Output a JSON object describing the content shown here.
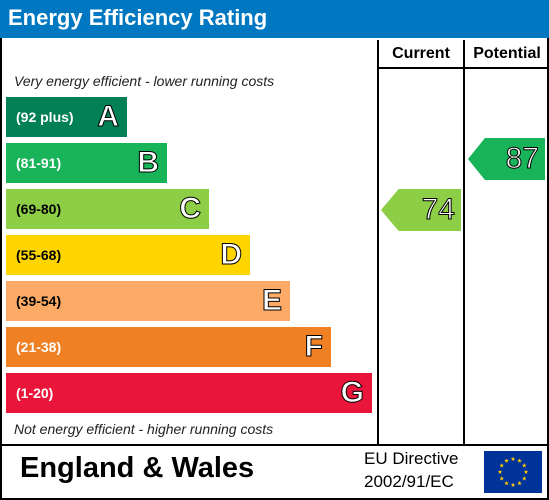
{
  "title": "Energy Efficiency Rating",
  "columns": {
    "current": "Current",
    "potential": "Potential"
  },
  "notes": {
    "top": "Very energy efficient - lower running costs",
    "bottom": "Not energy efficient - higher running costs"
  },
  "bands": [
    {
      "range": "(92 plus)",
      "letter": "A",
      "color": "#008054"
    },
    {
      "range": "(81-91)",
      "letter": "B",
      "color": "#19b459"
    },
    {
      "range": "(69-80)",
      "letter": "C",
      "color": "#8dce46"
    },
    {
      "range": "(55-68)",
      "letter": "D",
      "color": "#ffd500"
    },
    {
      "range": "(39-54)",
      "letter": "E",
      "color": "#fcaa65"
    },
    {
      "range": "(21-38)",
      "letter": "F",
      "color": "#ef8023"
    },
    {
      "range": "(1-20)",
      "letter": "G",
      "color": "#e9153b"
    }
  ],
  "ratings": {
    "current": {
      "value": "74",
      "band": "C",
      "color": "#8dce46"
    },
    "potential": {
      "value": "87",
      "band": "B",
      "color": "#19b459"
    }
  },
  "footer": {
    "region": "England & Wales",
    "directive_line1": "EU Directive",
    "directive_line2": "2002/91/EC"
  },
  "icons": {
    "flag": "eu-flag-icon"
  },
  "colors": {
    "header_bg": "#0078c1",
    "flag_bg": "#003399",
    "flag_stars": "#ffcc00"
  }
}
